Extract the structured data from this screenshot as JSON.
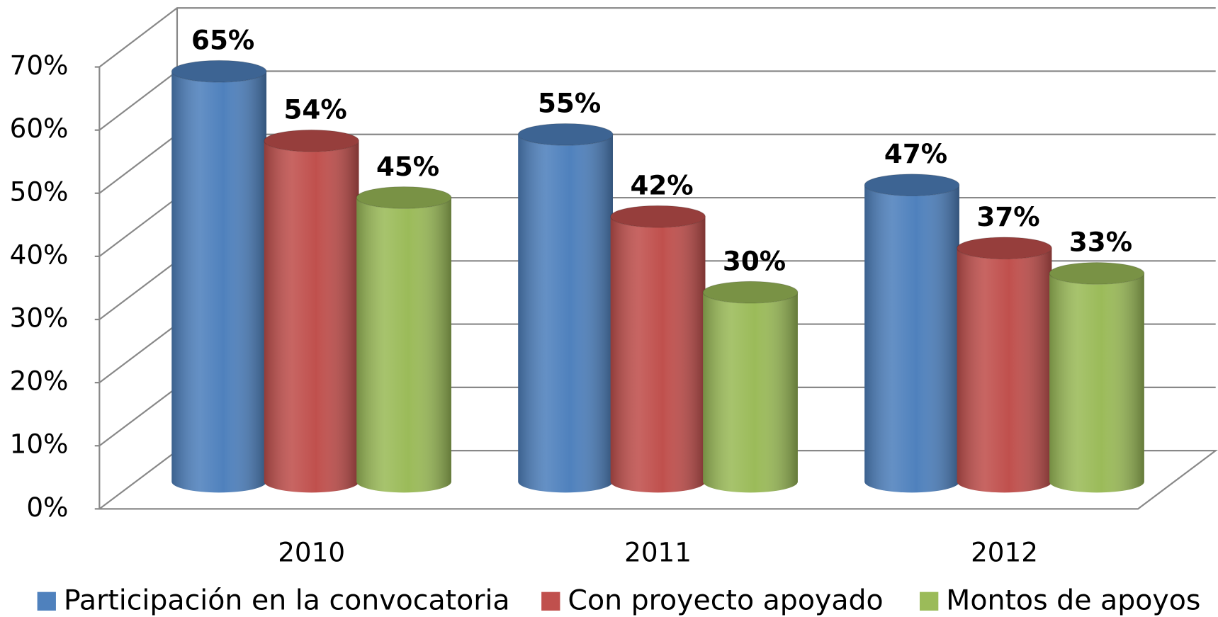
{
  "chart_data": {
    "type": "bar3d",
    "categories": [
      "2010",
      "2011",
      "2012"
    ],
    "series": [
      {
        "name": "Participación en la convocatoria",
        "color": "#4f81bd",
        "values": [
          65,
          55,
          47
        ],
        "value_labels": [
          "65%",
          "55%",
          "47%"
        ]
      },
      {
        "name": "Con proyecto apoyado",
        "color": "#c0504d",
        "values": [
          54,
          42,
          37
        ],
        "value_labels": [
          "54%",
          "42%",
          "37%"
        ]
      },
      {
        "name": "Montos de apoyos",
        "color": "#9bbb59",
        "values": [
          45,
          30,
          33
        ],
        "value_labels": [
          "45%",
          "30%",
          "33%"
        ]
      }
    ],
    "ylim": [
      0,
      70
    ],
    "yticks": [
      {
        "value": 0,
        "label": "0%"
      },
      {
        "value": 10,
        "label": "10%"
      },
      {
        "value": 20,
        "label": "20%"
      },
      {
        "value": 30,
        "label": "30%"
      },
      {
        "value": 40,
        "label": "40%"
      },
      {
        "value": 50,
        "label": "50%"
      },
      {
        "value": 60,
        "label": "60%"
      },
      {
        "value": 70,
        "label": "70%"
      }
    ],
    "grid": true,
    "legend": "bottom"
  }
}
